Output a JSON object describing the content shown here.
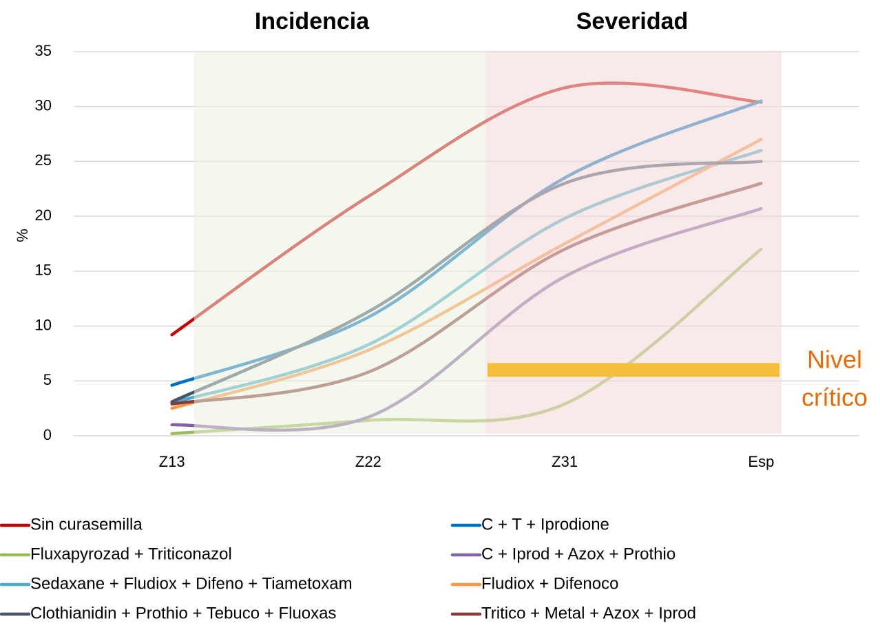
{
  "chart_data": {
    "type": "line",
    "region_titles": [
      "Incidencia",
      "Severidad"
    ],
    "ylabel": "%",
    "categories": [
      "Z13",
      "Z22",
      "Z31",
      "Esp"
    ],
    "ylim": [
      0,
      35
    ],
    "yticks": [
      0,
      5,
      10,
      15,
      20,
      25,
      30,
      35
    ],
    "grid": true,
    "critical_level": {
      "value": 6,
      "label_lines": [
        "Nivel",
        "crítico"
      ],
      "color": "#f6bd3c"
    },
    "series": [
      {
        "name": "Sin curasemilla",
        "color": "#c00000",
        "values": [
          9.2,
          21.8,
          31.7,
          30.4
        ]
      },
      {
        "name": "C + T + Iprodione",
        "color": "#0070c0",
        "values": [
          4.6,
          10.8,
          23.5,
          30.5
        ]
      },
      {
        "name": "Fluxapyrozad + Triticonazol",
        "color": "#9bbb59",
        "values": [
          0.2,
          1.4,
          2.9,
          17
        ]
      },
      {
        "name": "C + Iprod + Azox + Prothio",
        "color": "#8064a2",
        "values": [
          1.0,
          1.7,
          14.5,
          20.7
        ]
      },
      {
        "name": "Sedaxane + Fludiox + Difeno + Tiametoxam",
        "color": "#4bacc6",
        "values": [
          3.0,
          8.3,
          19.8,
          26
        ]
      },
      {
        "name": "Fludiox + Difenoco",
        "color": "#f79646",
        "values": [
          2.5,
          7.8,
          17.5,
          27
        ]
      },
      {
        "name": "Clothianidin + Prothio + Tebuco + Fluoxas",
        "color": "#44546a",
        "values": [
          3.1,
          11.3,
          23,
          25
        ]
      },
      {
        "name": "Tritico + Metal + Azox + Iprod",
        "color": "#843c3c",
        "values": [
          2.9,
          5.8,
          17,
          23
        ]
      }
    ]
  }
}
